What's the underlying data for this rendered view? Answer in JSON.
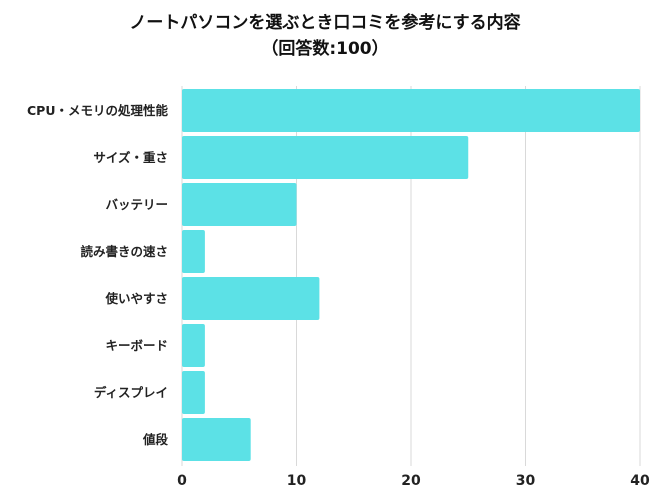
{
  "title": {
    "line1": "ノートパソコンを選ぶとき口コミを参考にする内容",
    "line2": "（回答数:100）"
  },
  "colors": {
    "bar": "#5ce1e6",
    "grid": "#d9d9d9",
    "text": "#222222"
  },
  "chart_data": {
    "type": "bar",
    "orientation": "horizontal",
    "title": "ノートパソコンを選ぶとき口コミを参考にする内容（回答数:100）",
    "categories": [
      "CPU・メモリの処理性能",
      "サイズ・重さ",
      "バッテリー",
      "読み書きの速さ",
      "使いやすさ",
      "キーボード",
      "ディスプレイ",
      "値段"
    ],
    "values": [
      40,
      25,
      10,
      2,
      12,
      2,
      2,
      6
    ],
    "xlim": [
      0,
      40
    ],
    "xticks": [
      0,
      10,
      20,
      30,
      40
    ],
    "grid": true,
    "legend": false
  }
}
